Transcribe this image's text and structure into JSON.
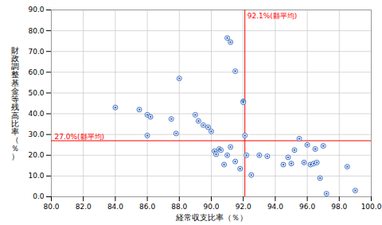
{
  "chart_data": {
    "type": "scatter",
    "x": [
      91.0,
      91.2,
      84.0,
      85.5,
      86.0,
      86.2,
      87.5,
      87.8,
      88.0,
      89.0,
      89.2,
      89.5,
      89.8,
      90.0,
      90.2,
      90.3,
      90.5,
      90.6,
      90.8,
      91.0,
      91.2,
      91.5,
      91.8,
      92.0,
      92.1,
      92.2,
      92.5,
      92.0,
      93.0,
      93.5,
      94.5,
      94.8,
      95.0,
      95.2,
      95.5,
      95.8,
      96.0,
      96.2,
      96.4,
      96.5,
      96.6,
      96.8,
      97.0,
      97.2,
      98.5,
      99.0,
      91.5,
      86.0
    ],
    "values": [
      76.5,
      74.5,
      43.0,
      42.0,
      39.5,
      38.5,
      37.5,
      30.5,
      57.0,
      39.5,
      36.5,
      34.5,
      33.5,
      31.5,
      22.0,
      20.5,
      23.0,
      22.5,
      15.5,
      20.0,
      24.0,
      17.0,
      13.5,
      46.0,
      29.5,
      20.0,
      10.5,
      45.5,
      20.0,
      19.5,
      15.5,
      19.0,
      16.0,
      22.5,
      28.0,
      16.5,
      25.0,
      15.5,
      16.0,
      23.0,
      16.5,
      9.0,
      24.5,
      1.5,
      14.5,
      3.0,
      60.5,
      29.5
    ],
    "color": "#4472C4",
    "marker": "donut",
    "xlabel": "経常収支比率（％）",
    "ylabel": "財政調整基金等残高比率（％）",
    "xlim": [
      80.0,
      100.0
    ],
    "ylim": [
      0.0,
      90.0
    ],
    "xticks": [
      {
        "value": 80,
        "label": "80.0"
      },
      {
        "value": 82,
        "label": "82.0"
      },
      {
        "value": 84,
        "label": "84.0"
      },
      {
        "value": 86,
        "label": "86.0"
      },
      {
        "value": 88,
        "label": "88.0"
      },
      {
        "value": 90,
        "label": "90.0"
      },
      {
        "value": 92,
        "label": "92.0"
      },
      {
        "value": 94,
        "label": "94.0"
      },
      {
        "value": 96,
        "label": "96.0"
      },
      {
        "value": 98,
        "label": "98.0"
      },
      {
        "value": 100,
        "label": "100.0"
      }
    ],
    "yticks": [
      {
        "value": 0,
        "label": "0.0"
      },
      {
        "value": 10,
        "label": "10.0"
      },
      {
        "value": 20,
        "label": "20.0"
      },
      {
        "value": 30,
        "label": "30.0"
      },
      {
        "value": 40,
        "label": "40.0"
      },
      {
        "value": 50,
        "label": "50.0"
      },
      {
        "value": 60,
        "label": "60.0"
      },
      {
        "value": 70,
        "label": "70.0"
      },
      {
        "value": 80,
        "label": "80.0"
      },
      {
        "value": 90,
        "label": "90.0"
      }
    ],
    "grid": true,
    "annotations": [
      {
        "type": "vline",
        "x": 92.1,
        "text": "92.1%(縣平均)",
        "color": "#FF0000"
      },
      {
        "type": "hline",
        "y": 27.0,
        "text": "27.0%(縣平均)",
        "color": "#FF0000"
      }
    ]
  }
}
